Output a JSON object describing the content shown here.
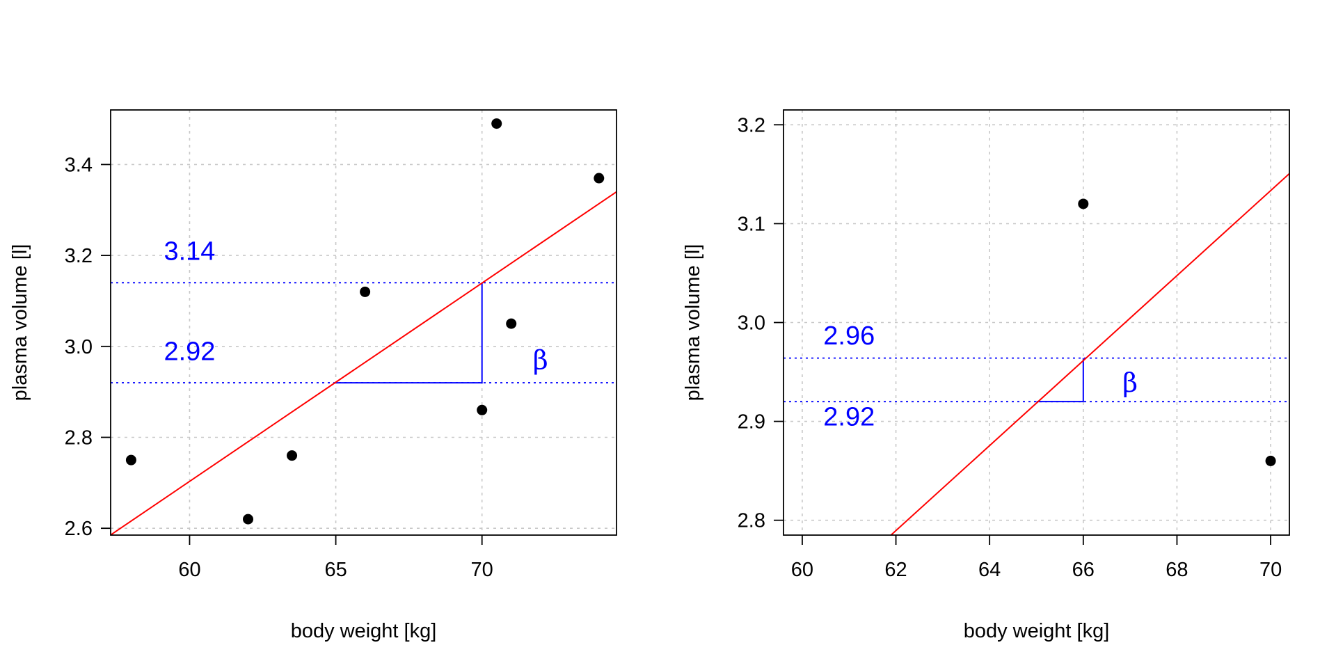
{
  "colors": {
    "points": "#000000",
    "fit_line": "#ff0000",
    "annotation": "#0000ff",
    "grid": "#c8c8c8",
    "frame": "#000000"
  },
  "chart_data": [
    {
      "id": "left",
      "type": "scatter",
      "title": "",
      "xlabel": "body weight [kg]",
      "ylabel": "plasma volume [l]",
      "xlim": [
        57.3,
        74.6
      ],
      "ylim": [
        2.585,
        3.52
      ],
      "xticks": [
        60,
        65,
        70
      ],
      "xtick_labels": [
        "60",
        "65",
        "70"
      ],
      "yticks": [
        2.6,
        2.8,
        3.0,
        3.2,
        3.4
      ],
      "ytick_labels": [
        "2.6",
        "2.8",
        "3.0",
        "3.2",
        "3.4"
      ],
      "grid": true,
      "points": [
        {
          "x": 58.0,
          "y": 2.75
        },
        {
          "x": 62.0,
          "y": 2.62
        },
        {
          "x": 63.5,
          "y": 2.76
        },
        {
          "x": 66.0,
          "y": 3.12
        },
        {
          "x": 70.0,
          "y": 2.86
        },
        {
          "x": 70.5,
          "y": 3.49
        },
        {
          "x": 71.0,
          "y": 3.05
        },
        {
          "x": 74.0,
          "y": 3.37
        }
      ],
      "fit_line": {
        "intercept": 0.0859,
        "slope": 0.04362
      },
      "hlines": [
        2.92,
        3.14
      ],
      "hline_labels": [
        {
          "text": "3.14",
          "x": 60.0,
          "y": 3.19
        },
        {
          "text": "2.92",
          "x": 60.0,
          "y": 2.97
        }
      ],
      "slope_triangle": {
        "x0": 65,
        "x1": 70,
        "y0": 2.92,
        "y1": 3.14
      },
      "beta": {
        "text": "β",
        "x": 72.0,
        "y": 2.95
      }
    },
    {
      "id": "right",
      "type": "scatter",
      "title": "",
      "xlabel": "body weight [kg]",
      "ylabel": "plasma volume [l]",
      "xlim": [
        59.6,
        70.4
      ],
      "ylim": [
        2.785,
        3.215
      ],
      "xticks": [
        60,
        62,
        64,
        66,
        68,
        70
      ],
      "xtick_labels": [
        "60",
        "62",
        "64",
        "66",
        "68",
        "70"
      ],
      "yticks": [
        2.8,
        2.9,
        3.0,
        3.1,
        3.2
      ],
      "ytick_labels": [
        "2.8",
        "2.9",
        "3.0",
        "3.1",
        "3.2"
      ],
      "grid": true,
      "points": [
        {
          "x": 66.0,
          "y": 3.12
        },
        {
          "x": 70.0,
          "y": 2.86
        }
      ],
      "fit_line": {
        "intercept": 0.1248,
        "slope": 0.04298
      },
      "hlines": [
        2.92,
        2.964
      ],
      "hline_labels": [
        {
          "text": "2.96",
          "x": 61.0,
          "y": 2.978
        },
        {
          "text": "2.92",
          "x": 61.0,
          "y": 2.896
        }
      ],
      "slope_triangle": {
        "x0": 65,
        "x1": 66,
        "y0": 2.92,
        "y1": 2.964
      },
      "beta": {
        "text": "β",
        "x": 67.0,
        "y": 2.93
      }
    }
  ]
}
